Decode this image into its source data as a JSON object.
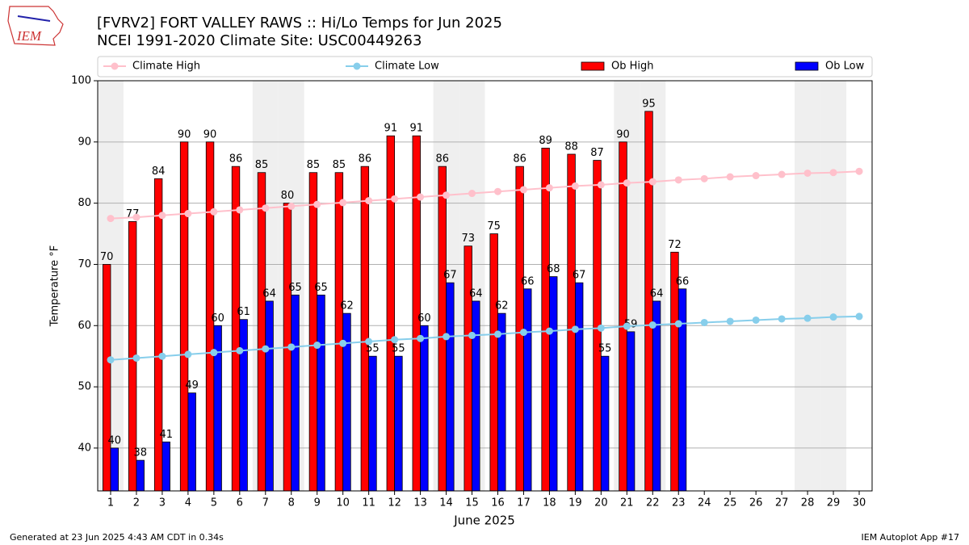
{
  "chart_data": {
    "type": "bar",
    "title": "[FVRV2] FORT VALLEY RAWS :: Hi/Lo Temps for Jun 2025",
    "subtitle": "NCEI 1991-2020 Climate Site: USC00449263",
    "x_label": "June 2025",
    "y_label": "Temperature °F",
    "logo_text": "IEM",
    "footer_left": "Generated at 23 Jun 2025 4:43 AM CDT in 0.34s",
    "footer_right": "IEM Autoplot App #17",
    "categories": [
      "1",
      "2",
      "3",
      "4",
      "5",
      "6",
      "7",
      "8",
      "9",
      "10",
      "11",
      "12",
      "13",
      "14",
      "15",
      "16",
      "17",
      "18",
      "19",
      "20",
      "21",
      "22",
      "23",
      "24",
      "25",
      "26",
      "27",
      "28",
      "29",
      "30"
    ],
    "highlight_days": [
      1,
      7,
      8,
      14,
      15,
      21,
      22,
      28,
      29
    ],
    "highlight_color": "#efefef",
    "series": [
      {
        "name": "Climate High",
        "kind": "line",
        "color": "#ffc0cb",
        "values": [
          77.5,
          77.7,
          78.0,
          78.3,
          78.6,
          78.9,
          79.2,
          79.5,
          79.8,
          80.1,
          80.4,
          80.7,
          81.0,
          81.3,
          81.6,
          81.9,
          82.2,
          82.5,
          82.8,
          83.0,
          83.3,
          83.5,
          83.8,
          84.0,
          84.3,
          84.5,
          84.7,
          84.9,
          85.0,
          85.2
        ]
      },
      {
        "name": "Climate Low",
        "kind": "line",
        "color": "#87ceeb",
        "values": [
          54.4,
          54.7,
          55.0,
          55.3,
          55.6,
          55.9,
          56.2,
          56.5,
          56.8,
          57.1,
          57.4,
          57.7,
          57.9,
          58.2,
          58.4,
          58.6,
          58.9,
          59.1,
          59.4,
          59.6,
          59.9,
          60.1,
          60.3,
          60.5,
          60.7,
          60.9,
          61.1,
          61.2,
          61.4,
          61.5
        ]
      },
      {
        "name": "Ob High",
        "kind": "bar",
        "color": "#ff0000",
        "values": [
          70,
          77,
          84,
          90,
          90,
          86,
          85,
          80,
          85,
          85,
          86,
          91,
          91,
          86,
          73,
          75,
          86,
          89,
          88,
          87,
          90,
          95,
          72,
          null,
          null,
          null,
          null,
          null,
          null,
          null
        ]
      },
      {
        "name": "Ob Low",
        "kind": "bar",
        "color": "#0000ff",
        "values": [
          40,
          38,
          41,
          49,
          60,
          61,
          64,
          65,
          65,
          62,
          55,
          55,
          60,
          67,
          64,
          62,
          66,
          68,
          67,
          55,
          59,
          64,
          66,
          null,
          null,
          null,
          null,
          null,
          null,
          null
        ]
      }
    ],
    "ylim": [
      33,
      100
    ],
    "yticks": [
      40,
      50,
      60,
      70,
      80,
      90,
      100
    ],
    "grid": true
  }
}
